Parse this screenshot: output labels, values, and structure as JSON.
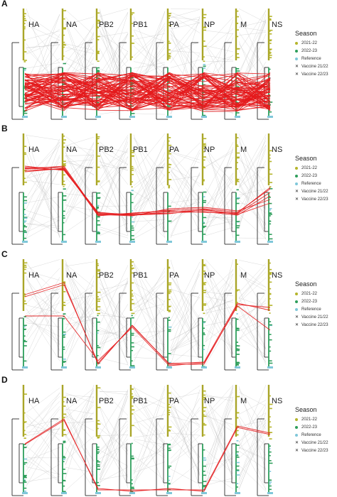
{
  "panels": [
    {
      "letter": "A",
      "top": 0,
      "legend_title": "Season"
    },
    {
      "letter": "B",
      "top": 176,
      "legend_title": "Season"
    },
    {
      "letter": "C",
      "top": 353,
      "legend_title": "Season"
    },
    {
      "letter": "D",
      "top": 530,
      "legend_title": "Season"
    }
  ],
  "segments": [
    "HA",
    "NA",
    "PB2",
    "PB1",
    "PA",
    "NP",
    "M",
    "NS"
  ],
  "legend": [
    {
      "label": "2021-22",
      "color": "#b5b52b",
      "mark": "dot"
    },
    {
      "label": "2022-23",
      "color": "#2e9e5b",
      "mark": "dot"
    },
    {
      "label": "Reference",
      "color": "#7fc7d9",
      "mark": "dot"
    },
    {
      "label": "Vaccine 21/22",
      "color": "#222222",
      "mark": "cross"
    },
    {
      "label": "Vaccine 22/23",
      "color": "#222222",
      "mark": "cross"
    }
  ],
  "colors": {
    "highlight": "#e41a1c",
    "background_lines": "#bdbdbd",
    "tree": "#111111"
  }
}
